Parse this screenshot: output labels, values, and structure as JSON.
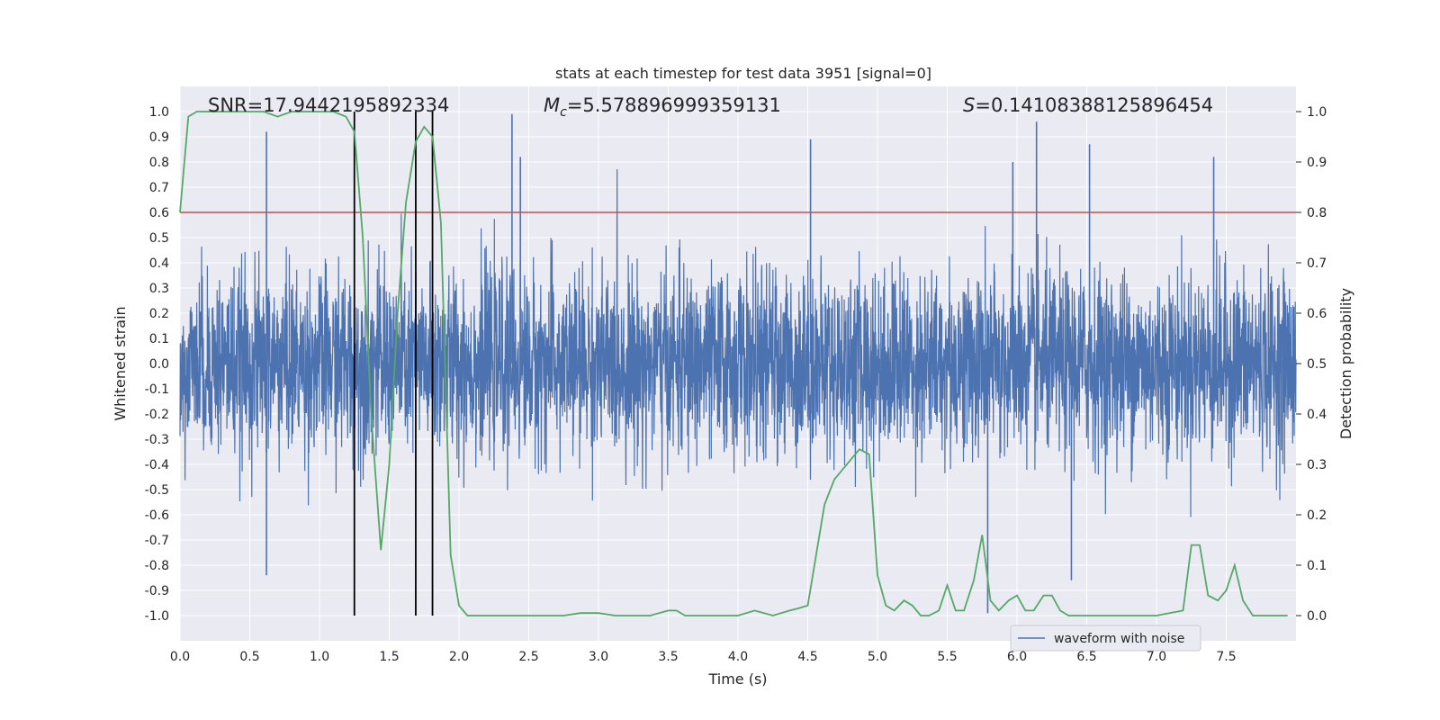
{
  "chart_data": {
    "type": "line",
    "title": "stats at each timestep for test data 3951 [signal=0]",
    "xlabel": "Time (s)",
    "ylabel": "Whitened strain",
    "ylabel_right": "Detection probability",
    "xlim": [
      0.0,
      8.0
    ],
    "ylim": [
      -1.1,
      1.1
    ],
    "ylim_right": [
      -0.05,
      1.05
    ],
    "grid": true,
    "legend_position": "lower-right",
    "x_ticks": [
      "0.0",
      "0.5",
      "1.0",
      "1.5",
      "2.0",
      "2.5",
      "3.0",
      "3.5",
      "4.0",
      "4.5",
      "5.0",
      "5.5",
      "6.0",
      "6.5",
      "7.0",
      "7.5"
    ],
    "y_ticks": [
      "1.0",
      "0.9",
      "0.8",
      "0.7",
      "0.6",
      "0.5",
      "0.4",
      "0.3",
      "0.2",
      "0.1",
      "0.0",
      "-0.1",
      "-0.2",
      "-0.3",
      "-0.4",
      "-0.5",
      "-0.6",
      "-0.7",
      "-0.8",
      "-0.9",
      "-1.0"
    ],
    "y_right_ticks": [
      "1.0",
      "0.9",
      "0.8",
      "0.7",
      "0.6",
      "0.5",
      "0.4",
      "0.3",
      "0.2",
      "0.1",
      "0.0"
    ],
    "annotations": {
      "snr": "SNR=17.9442195892334",
      "mc_symbol": "M",
      "mc_sub": "c",
      "mc_value": "=5.578896999359131",
      "s_symbol": "S",
      "s_value": "=0.14108388125896454"
    },
    "series": [
      {
        "name": "waveform with noise",
        "color": "#4c72b0",
        "kind": "noise",
        "note": "dense whitened strain samples, envelope approx ±0.35 with spikes to ±0.95",
        "peaks": [
          {
            "x": 0.62,
            "y": 0.92
          },
          {
            "x": 2.38,
            "y": 0.99
          },
          {
            "x": 2.44,
            "y": 0.82
          },
          {
            "x": 4.52,
            "y": 0.89
          },
          {
            "x": 5.97,
            "y": 0.8
          },
          {
            "x": 6.14,
            "y": 0.96
          },
          {
            "x": 6.52,
            "y": 0.87
          },
          {
            "x": 7.41,
            "y": 0.82
          }
        ],
        "troughs": [
          {
            "x": 0.62,
            "y": -0.84
          },
          {
            "x": 5.79,
            "y": -0.99
          },
          {
            "x": 6.39,
            "y": -0.86
          }
        ]
      },
      {
        "name": "",
        "color": "#55a868",
        "axis": "right",
        "x": [
          0.0,
          0.06,
          0.12,
          0.2,
          0.3,
          0.4,
          0.5,
          0.6,
          0.7,
          0.8,
          0.9,
          1.0,
          1.1,
          1.19,
          1.25,
          1.31,
          1.37,
          1.44,
          1.5,
          1.56,
          1.62,
          1.69,
          1.75,
          1.81,
          1.87,
          1.94,
          2.0,
          2.06,
          2.12,
          2.5,
          2.75,
          2.87,
          3.0,
          3.12,
          3.25,
          3.37,
          3.5,
          3.56,
          3.62,
          3.75,
          4.0,
          4.12,
          4.25,
          4.37,
          4.44,
          4.5,
          4.56,
          4.62,
          4.69,
          4.75,
          4.87,
          4.94,
          5.0,
          5.06,
          5.12,
          5.19,
          5.25,
          5.31,
          5.37,
          5.44,
          5.5,
          5.56,
          5.62,
          5.69,
          5.75,
          5.81,
          5.87,
          5.94,
          6.0,
          6.06,
          6.12,
          6.19,
          6.25,
          6.31,
          6.37,
          6.44,
          6.5,
          6.75,
          7.0,
          7.19,
          7.25,
          7.31,
          7.37,
          7.44,
          7.5,
          7.56,
          7.62,
          7.69,
          7.75,
          7.81,
          7.87,
          7.94
        ],
        "values": [
          0.8,
          0.99,
          1.0,
          1.0,
          1.0,
          1.0,
          1.0,
          1.0,
          0.99,
          1.0,
          1.0,
          1.0,
          1.0,
          0.99,
          0.96,
          0.75,
          0.4,
          0.13,
          0.3,
          0.6,
          0.82,
          0.94,
          0.97,
          0.95,
          0.78,
          0.12,
          0.02,
          0.0,
          0.0,
          0.0,
          0.0,
          0.005,
          0.005,
          0.0,
          0.0,
          0.0,
          0.01,
          0.01,
          0.0,
          0.0,
          0.0,
          0.01,
          0.0,
          0.01,
          0.015,
          0.02,
          0.12,
          0.22,
          0.27,
          0.29,
          0.33,
          0.32,
          0.08,
          0.02,
          0.01,
          0.03,
          0.02,
          0.0,
          0.0,
          0.01,
          0.06,
          0.01,
          0.01,
          0.07,
          0.16,
          0.03,
          0.01,
          0.03,
          0.04,
          0.01,
          0.01,
          0.04,
          0.04,
          0.01,
          0.0,
          0.0,
          0.0,
          0.0,
          0.0,
          0.01,
          0.14,
          0.14,
          0.04,
          0.03,
          0.05,
          0.1,
          0.03,
          0.0,
          0.0,
          0.0,
          0.0,
          0.0
        ]
      }
    ],
    "reference_lines": {
      "horizontal_red_y": 0.8,
      "horizontal_red_color": "#c44e52",
      "vertical_black_x": [
        1.25,
        1.69,
        1.81
      ],
      "vertical_black_color": "#000000"
    }
  }
}
